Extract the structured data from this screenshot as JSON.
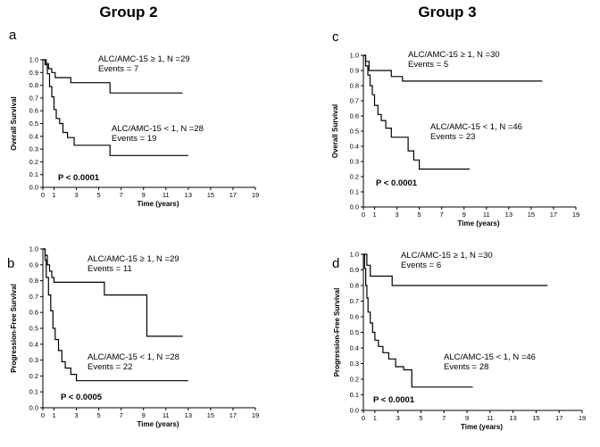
{
  "groups": [
    "Group 2",
    "Group 3"
  ],
  "chart_data": [
    {
      "type": "line",
      "panel": "a",
      "group": "Group 2",
      "xlabel": "Time (years)",
      "ylabel": "Overall Survival",
      "xlim": [
        0,
        19
      ],
      "ylim": [
        0,
        1.0
      ],
      "xticks": [
        0,
        1,
        3,
        5,
        7,
        9,
        11,
        13,
        15,
        17,
        19
      ],
      "yticks": [
        0.0,
        0.1,
        0.2,
        0.3,
        0.4,
        0.5,
        0.6,
        0.7,
        0.8,
        0.9,
        1.0
      ],
      "pvalue": "P < 0.0001",
      "series": [
        {
          "label": "ALC/AMC-15 ≥ 1, N =29",
          "events": "Events = 7",
          "x": [
            0,
            0.3,
            0.5,
            0.8,
            1.1,
            1.5,
            2.5,
            4.5,
            6.0,
            12.5
          ],
          "y": [
            1.0,
            0.97,
            0.93,
            0.9,
            0.86,
            0.86,
            0.82,
            0.82,
            0.74,
            0.74
          ]
        },
        {
          "label": "ALC/AMC-15 < 1, N =28",
          "events": "Events = 19",
          "x": [
            0,
            0.2,
            0.4,
            0.6,
            0.8,
            1.0,
            1.2,
            1.5,
            1.8,
            2.2,
            2.8,
            4.0,
            6.0,
            13.0
          ],
          "y": [
            1.0,
            0.96,
            0.89,
            0.79,
            0.71,
            0.61,
            0.54,
            0.5,
            0.43,
            0.39,
            0.33,
            0.33,
            0.25,
            0.25
          ]
        }
      ]
    },
    {
      "type": "line",
      "panel": "b",
      "group": "Group 2",
      "xlabel": "Time (years)",
      "ylabel": "Progression-Free Survival",
      "xlim": [
        0,
        19
      ],
      "ylim": [
        0,
        1.0
      ],
      "xticks": [
        0,
        1,
        3,
        5,
        7,
        9,
        11,
        13,
        15,
        17,
        19
      ],
      "yticks": [
        0.0,
        0.1,
        0.2,
        0.3,
        0.4,
        0.5,
        0.6,
        0.7,
        0.8,
        0.9,
        1.0
      ],
      "pvalue": "P < 0.0005",
      "series": [
        {
          "label": "ALC/AMC-15 ≥ 1, N =29",
          "events": "Events = 11",
          "x": [
            0,
            0.2,
            0.4,
            0.6,
            0.8,
            1.0,
            5.0,
            5.5,
            9.0,
            9.3,
            12.5
          ],
          "y": [
            1.0,
            0.96,
            0.9,
            0.86,
            0.82,
            0.79,
            0.79,
            0.71,
            0.71,
            0.45,
            0.45
          ]
        },
        {
          "label": "ALC/AMC-15 < 1, N =28",
          "events": "Events = 22",
          "x": [
            0,
            0.2,
            0.3,
            0.5,
            0.7,
            0.9,
            1.1,
            1.4,
            1.7,
            2.0,
            2.5,
            3.0,
            13.0
          ],
          "y": [
            1.0,
            0.93,
            0.82,
            0.71,
            0.61,
            0.5,
            0.43,
            0.36,
            0.29,
            0.25,
            0.21,
            0.17,
            0.17
          ]
        }
      ]
    },
    {
      "type": "line",
      "panel": "c",
      "group": "Group 3",
      "xlabel": "Time (years)",
      "ylabel": "Overall Survival",
      "xlim": [
        0,
        19
      ],
      "ylim": [
        0,
        1.0
      ],
      "xticks": [
        0,
        1,
        3,
        5,
        7,
        9,
        11,
        13,
        15,
        17,
        19
      ],
      "yticks": [
        0.0,
        0.1,
        0.2,
        0.3,
        0.4,
        0.5,
        0.6,
        0.7,
        0.8,
        0.9,
        1.0
      ],
      "pvalue": "P < 0.0001",
      "series": [
        {
          "label": "ALC/AMC-15  ≥ 1, N =30",
          "events": "Events = 5",
          "x": [
            0,
            0.2,
            0.5,
            2.0,
            2.5,
            3.5,
            16.0
          ],
          "y": [
            1.0,
            0.96,
            0.9,
            0.9,
            0.86,
            0.83,
            0.83
          ]
        },
        {
          "label": "ALC/AMC-15 < 1, N =46",
          "events": "Events = 23",
          "x": [
            0,
            0.2,
            0.4,
            0.6,
            0.8,
            1.0,
            1.3,
            1.6,
            2.0,
            2.5,
            3.0,
            4.0,
            4.5,
            5.0,
            9.5
          ],
          "y": [
            1.0,
            0.93,
            0.87,
            0.8,
            0.74,
            0.67,
            0.61,
            0.57,
            0.52,
            0.46,
            0.46,
            0.37,
            0.31,
            0.25,
            0.25
          ]
        }
      ]
    },
    {
      "type": "line",
      "panel": "d",
      "group": "Group 3",
      "xlabel": "Time (years)",
      "ylabel": "Progression-Free Survival",
      "xlim": [
        0,
        19
      ],
      "ylim": [
        0,
        1.0
      ],
      "xticks": [
        0,
        1,
        3,
        5,
        7,
        9,
        11,
        13,
        15,
        17,
        19
      ],
      "yticks": [
        0.0,
        0.1,
        0.2,
        0.3,
        0.4,
        0.5,
        0.6,
        0.7,
        0.8,
        0.9,
        1.0
      ],
      "pvalue": "P < 0.0001",
      "series": [
        {
          "label": "ALC/AMC-15 ≥ 1, N =30",
          "events": "Events = 6",
          "x": [
            0,
            0.3,
            0.6,
            2.0,
            2.5,
            16.0
          ],
          "y": [
            1.0,
            0.93,
            0.86,
            0.86,
            0.8,
            0.8
          ]
        },
        {
          "label": "ALC/AMC-15 < 1, N =46",
          "events": "Events = 28",
          "x": [
            0,
            0.1,
            0.2,
            0.3,
            0.4,
            0.6,
            0.8,
            1.0,
            1.3,
            1.7,
            2.2,
            2.8,
            3.5,
            4.2,
            9.5
          ],
          "y": [
            1.0,
            0.91,
            0.8,
            0.72,
            0.63,
            0.56,
            0.5,
            0.45,
            0.41,
            0.37,
            0.33,
            0.28,
            0.26,
            0.15,
            0.15
          ]
        }
      ]
    }
  ]
}
